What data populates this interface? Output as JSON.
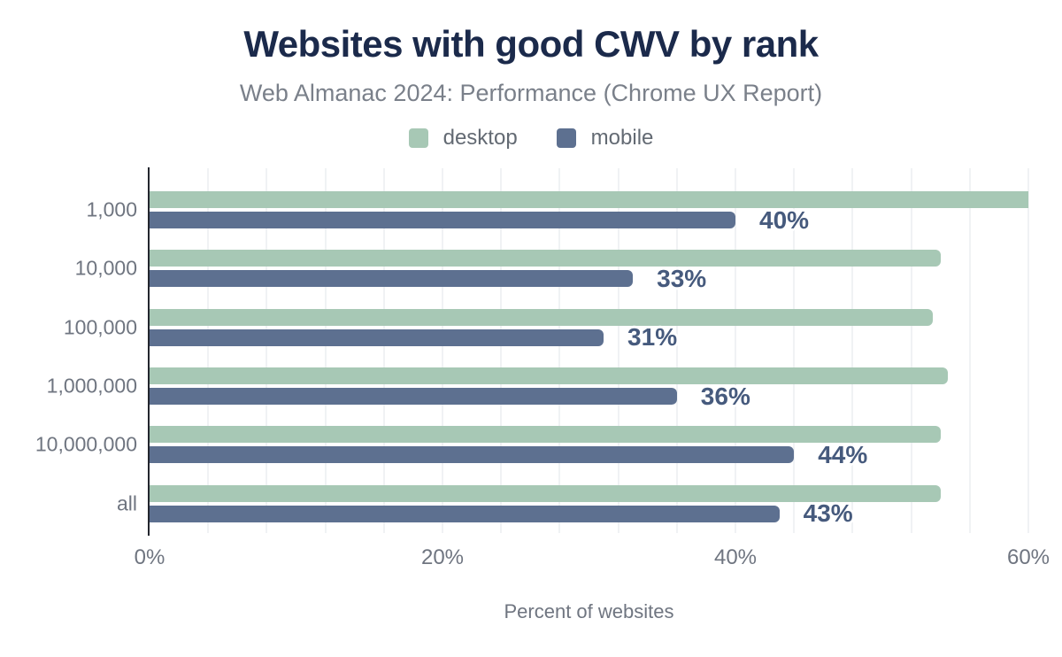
{
  "title": "Websites with good CWV by rank",
  "subtitle": "Web Almanac 2024: Performance (Chrome UX Report)",
  "chart_data": {
    "type": "bar",
    "orientation": "horizontal",
    "title": "Websites with good CWV by rank",
    "subtitle": "Web Almanac 2024: Performance (Chrome UX Report)",
    "xlabel": "Percent of websites",
    "xlim": [
      0,
      60
    ],
    "x_ticks": [
      {
        "value": 0,
        "label": "0%"
      },
      {
        "value": 20,
        "label": "20%"
      },
      {
        "value": 40,
        "label": "40%"
      },
      {
        "value": 60,
        "label": "60%"
      }
    ],
    "grid": true,
    "gridline_step": 4,
    "legend_position": "top-center",
    "categories": [
      "1,000",
      "10,000",
      "100,000",
      "1,000,000",
      "10,000,000",
      "all"
    ],
    "series": [
      {
        "name": "desktop",
        "color": "#a7c8b5",
        "values": [
          60,
          54,
          53.5,
          54.5,
          54,
          54
        ],
        "data_labels_visible": false,
        "data_labels": []
      },
      {
        "name": "mobile",
        "color": "#5d7090",
        "values": [
          40,
          33,
          31,
          36,
          44,
          43
        ],
        "data_labels_visible": true,
        "data_labels": [
          "40%",
          "33%",
          "31%",
          "36%",
          "44%",
          "43%"
        ]
      }
    ]
  },
  "colors": {
    "background": "#ffffff",
    "title": "#1b2a4b",
    "subtitle": "#7a808a",
    "axis_line": "#23262e",
    "gridline": "#f0f2f4",
    "tick_label": "#6f7580",
    "category_label": "#6f7580",
    "axis_title": "#6f7580",
    "legend_label": "#636a73",
    "data_label": "#465a7d",
    "desktop": "#a7c8b5",
    "mobile": "#5d7090"
  }
}
